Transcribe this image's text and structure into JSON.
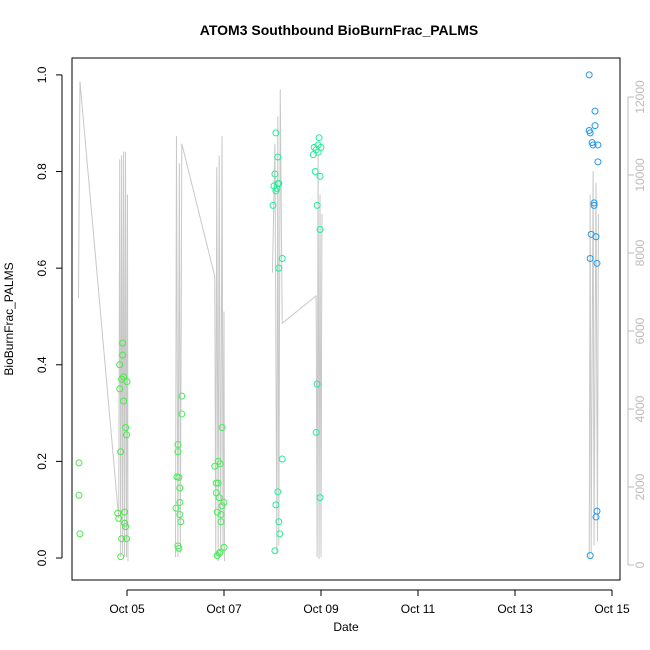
{
  "chart_data": {
    "type": "scatter",
    "title": "ATOM3 Southbound BioBurnFrac_PALMS",
    "x_label": "Date",
    "y_label": "BioBurnFrac_PALMS",
    "xlim": [
      3.866,
      15.165
    ],
    "ylim": [
      -0.0455,
      1.035
    ],
    "y2lim": [
      -385,
      13000
    ],
    "xticks": [
      {
        "value": 5,
        "label": "Oct 05"
      },
      {
        "value": 7,
        "label": "Oct 07"
      },
      {
        "value": 9,
        "label": "Oct 09"
      },
      {
        "value": 11,
        "label": "Oct 11"
      },
      {
        "value": 13,
        "label": "Oct 13"
      },
      {
        "value": 15,
        "label": "Oct 15"
      }
    ],
    "yticks": [
      {
        "value": 0,
        "label": "0.0"
      },
      {
        "value": 0.2,
        "label": "0.2"
      },
      {
        "value": 0.4,
        "label": "0.4"
      },
      {
        "value": 0.6,
        "label": "0.6"
      },
      {
        "value": 0.8,
        "label": "0.8"
      },
      {
        "value": 1,
        "label": "1.0"
      }
    ],
    "y2ticks": [
      0,
      2000,
      4000,
      6000,
      8000,
      10000,
      12000
    ],
    "series": [
      {
        "type": "line",
        "axis": "y2",
        "color": "#c8c8c8",
        "x": [
          4.0,
          4.03,
          4.83,
          4.85,
          4.87,
          4.89,
          4.91,
          4.93,
          4.95,
          4.97,
          4.99,
          5.01,
          5.02,
          null,
          6.0,
          6.02,
          6.05,
          6.08,
          6.1,
          6.13,
          6.81,
          6.83,
          6.85,
          6.88,
          6.9,
          6.93,
          6.96,
          6.98,
          7.0,
          7.01,
          null,
          8.0,
          8.05,
          8.09,
          8.11,
          8.13,
          8.16,
          8.2,
          8.9,
          8.92,
          8.94,
          8.96,
          8.98,
          9.0,
          9.02,
          null,
          14.53,
          14.55,
          14.57,
          14.61,
          14.63,
          14.67,
          14.7,
          14.72
        ],
        "values": [
          6850,
          12400,
          1200,
          10400,
          200,
          10500,
          300,
          10600,
          200,
          10600,
          200,
          9500,
          100,
          null,
          200,
          11000,
          200,
          10300,
          300,
          10800,
          7400,
          200,
          10200,
          100,
          10500,
          200,
          11000,
          300,
          6500,
          100,
          null,
          7500,
          10800,
          300,
          11500,
          500,
          12200,
          6200,
          6900,
          200,
          10500,
          150,
          9500,
          200,
          9000,
          null,
          200,
          9500,
          300,
          10100,
          500,
          9800,
          600,
          9000
        ]
      },
      {
        "type": "scatter",
        "color": "#44ee44",
        "x": [
          4.01,
          4.01,
          4.03,
          4.81,
          4.83,
          4.85,
          4.85,
          4.87,
          4.87,
          4.89,
          4.89,
          4.91,
          4.91,
          4.93,
          4.93,
          4.95,
          4.95,
          4.97,
          4.97,
          4.99,
          4.99,
          5.0
        ],
        "values": [
          0.197,
          0.13,
          0.05,
          0.093,
          0.082,
          0.35,
          0.4,
          0.22,
          0.003,
          0.04,
          0.37,
          0.42,
          0.445,
          0.375,
          0.325,
          0.095,
          0.072,
          0.065,
          0.27,
          0.255,
          0.04,
          0.365
        ]
      },
      {
        "type": "scatter",
        "color": "#44ee55",
        "x": [
          6.01,
          6.03,
          6.05,
          6.05,
          6.05,
          6.07,
          6.07,
          6.09,
          6.09,
          6.09,
          6.11,
          6.13,
          6.13,
          6.81,
          6.84,
          6.84,
          6.86,
          6.86,
          6.88,
          6.88,
          6.9,
          6.9,
          6.92,
          6.92,
          6.94,
          6.94,
          6.96,
          6.96,
          7.0,
          7.0
        ],
        "values": [
          0.103,
          0.168,
          0.235,
          0.22,
          0.025,
          0.02,
          0.167,
          0.145,
          0.115,
          0.09,
          0.075,
          0.335,
          0.298,
          0.19,
          0.155,
          0.135,
          0.095,
          0.005,
          0.2,
          0.155,
          0.01,
          0.125,
          0.012,
          0.195,
          0.075,
          0.09,
          0.108,
          0.27,
          0.022,
          0.115
        ]
      },
      {
        "type": "scatter",
        "color": "#22ee99",
        "x": [
          8.01,
          8.03,
          8.05,
          8.07,
          8.07,
          8.09,
          8.11,
          8.11,
          8.13,
          8.13,
          8.05,
          8.07,
          8.11,
          8.13,
          8.15,
          8.2,
          8.2,
          8.84,
          8.86,
          8.88,
          8.9,
          8.9,
          8.92,
          8.92,
          8.94,
          8.94,
          8.96,
          8.98,
          8.98,
          9.0,
          8.98
        ],
        "values": [
          0.73,
          0.77,
          0.795,
          0.88,
          0.76,
          0.765,
          0.775,
          0.83,
          0.775,
          0.6,
          0.015,
          0.11,
          0.137,
          0.075,
          0.05,
          0.205,
          0.62,
          0.835,
          0.85,
          0.8,
          0.845,
          0.26,
          0.36,
          0.73,
          0.855,
          0.84,
          0.87,
          0.68,
          0.79,
          0.85,
          0.125
        ]
      },
      {
        "type": "scatter",
        "color": "#2299ee",
        "x": [
          14.53,
          14.53,
          14.55,
          14.55,
          14.55,
          14.57,
          14.59,
          14.61,
          14.63,
          14.63,
          14.65,
          14.65,
          14.67,
          14.69,
          14.71,
          14.71,
          14.67,
          14.69
        ],
        "values": [
          1.0,
          0.885,
          0.88,
          0.62,
          0.005,
          0.67,
          0.86,
          0.855,
          0.73,
          0.735,
          0.925,
          0.895,
          0.665,
          0.61,
          0.855,
          0.82,
          0.085,
          0.097
        ]
      }
    ]
  }
}
